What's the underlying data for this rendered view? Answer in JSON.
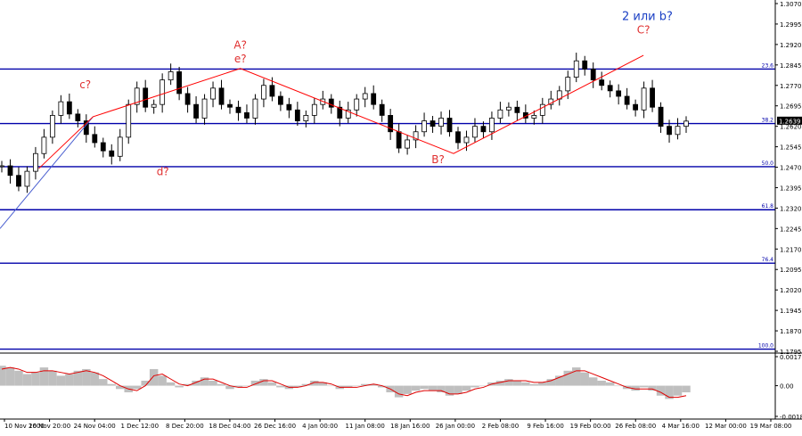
{
  "instrument_price": "1.2639",
  "colors": {
    "candles": "#000000",
    "fib_lines": "#0000aa",
    "wave_lines": "#ff0000",
    "wave_labels_red": "#e03030",
    "wave_label_blue": "#1a3fc4",
    "trendline": "#4a5fd0",
    "histogram": "#bfbfbf",
    "signal_line": "#e00000",
    "price_box": "#000000"
  },
  "chart_data": [
    {
      "type": "candlestick",
      "price_axis": {
        "ylim": [
          1.1795,
          1.307
        ],
        "ticks": [
          "1.3070",
          "1.2995",
          "1.2920",
          "1.2845",
          "1.2770",
          "1.2695",
          "1.2620",
          "1.2545",
          "1.2470",
          "1.2395",
          "1.2320",
          "1.2245",
          "1.2170",
          "1.2095",
          "1.2020",
          "1.1945",
          "1.1870",
          "1.1795"
        ]
      },
      "time_axis": {
        "ticks": [
          "10 Nov 2000",
          "16 Nov 20:00",
          "24 Nov 04:00",
          "1 Dec 12:00",
          "8 Dec 20:00",
          "18 Dec 04:00",
          "26 Dec 16:00",
          "4 Jan 00:00",
          "11 Jan 08:00",
          "18 Jan 16:00",
          "26 Jan 00:00",
          "2 Feb 08:00",
          "9 Feb 16:00",
          "19 Feb 00:00",
          "26 Feb 08:00",
          "4 Mar 16:00",
          "12 Mar 00:00",
          "19 Mar 08:00"
        ]
      },
      "fibonacci_levels": [
        {
          "label": "23.6",
          "price": 1.283
        },
        {
          "label": "38.2",
          "price": 1.263
        },
        {
          "label": "50.0",
          "price": 1.2472
        },
        {
          "label": "61.8",
          "price": 1.2314
        },
        {
          "label": "76.4",
          "price": 1.2118
        },
        {
          "label": "100.0",
          "price": 1.1803
        }
      ],
      "wave_labels": [
        {
          "text": "c?",
          "price": 1.276,
          "time_index": 0.11
        },
        {
          "text": "A?",
          "price": 1.2905,
          "time_index": 0.31
        },
        {
          "text": "e?",
          "price": 1.2855,
          "time_index": 0.31
        },
        {
          "text": "d?",
          "price": 1.244,
          "time_index": 0.21
        },
        {
          "text": "B?",
          "price": 1.2485,
          "time_index": 0.565
        },
        {
          "text": "C?",
          "price": 1.296,
          "time_index": 0.83
        },
        {
          "text": "2 или b?",
          "price": 1.301,
          "time_index": 0.835
        }
      ],
      "wave_path": [
        {
          "time_index": 0.05,
          "price": 1.2465
        },
        {
          "time_index": 0.12,
          "price": 1.2655
        },
        {
          "time_index": 0.31,
          "price": 1.2832
        },
        {
          "time_index": 0.585,
          "price": 1.252
        },
        {
          "time_index": 0.83,
          "price": 1.288
        }
      ],
      "trendline": [
        {
          "time_index": 0.0,
          "price": 1.2245
        },
        {
          "time_index": 0.12,
          "price": 1.2655
        }
      ],
      "close_series": [
        1.2475,
        1.244,
        1.24,
        1.2455,
        1.252,
        1.258,
        1.266,
        1.271,
        1.2665,
        1.264,
        1.259,
        1.256,
        1.253,
        1.251,
        1.258,
        1.27,
        1.276,
        1.269,
        1.27,
        1.279,
        1.282,
        1.274,
        1.27,
        1.265,
        1.272,
        1.276,
        1.27,
        1.269,
        1.267,
        1.265,
        1.272,
        1.277,
        1.273,
        1.27,
        1.268,
        1.264,
        1.266,
        1.27,
        1.272,
        1.269,
        1.265,
        1.268,
        1.272,
        1.274,
        1.27,
        1.266,
        1.26,
        1.254,
        1.257,
        1.26,
        1.264,
        1.262,
        1.265,
        1.26,
        1.256,
        1.258,
        1.262,
        1.26,
        1.265,
        1.268,
        1.269,
        1.267,
        1.265,
        1.266,
        1.27,
        1.272,
        1.275,
        1.28,
        1.286,
        1.283,
        1.279,
        1.277,
        1.275,
        1.273,
        1.27,
        1.268,
        1.276,
        1.269,
        1.262,
        1.259,
        1.262,
        1.2639
      ]
    },
    {
      "type": "oscillator",
      "ylim": [
        -0.00185,
        0.00175
      ],
      "ticks": [
        "0.00175",
        "0.00",
        "-0.00185"
      ],
      "histogram": [
        0.0012,
        0.0011,
        0.0009,
        0.0007,
        0.0008,
        0.0011,
        0.0009,
        0.0006,
        0.0007,
        0.0009,
        0.001,
        0.0008,
        0.0004,
        0.0001,
        -0.0002,
        -0.0004,
        -0.0002,
        0.0003,
        0.001,
        0.0006,
        0.0002,
        -0.0001,
        0.0001,
        0.0003,
        0.0005,
        0.0003,
        0.0001,
        -0.0002,
        -0.0001,
        0.0,
        0.0003,
        0.0004,
        0.0002,
        -0.0001,
        -0.0002,
        -0.0001,
        0.0001,
        0.0003,
        0.0002,
        0.0,
        -0.0002,
        -0.0001,
        0.0,
        0.0001,
        0.0001,
        -0.0001,
        -0.0004,
        -0.0007,
        -0.0005,
        -0.0003,
        -0.0002,
        -0.0003,
        -0.0004,
        -0.0006,
        -0.0005,
        -0.0003,
        -0.0001,
        0.0,
        0.0002,
        0.0003,
        0.0004,
        0.0003,
        0.0002,
        0.0001,
        0.0002,
        0.0004,
        0.0006,
        0.0009,
        0.0011,
        0.0008,
        0.0005,
        0.0003,
        0.0002,
        0.0,
        -0.0002,
        -0.0003,
        -0.0001,
        -0.0003,
        -0.0006,
        -0.0008,
        -0.0006,
        -0.0004
      ],
      "signal": [
        0.001,
        0.0011,
        0.001,
        0.0008,
        0.0008,
        0.0009,
        0.0009,
        0.0008,
        0.0007,
        0.0008,
        0.0009,
        0.0008,
        0.0006,
        0.0003,
        0.0,
        -0.0002,
        -0.0003,
        0.0,
        0.0006,
        0.0007,
        0.0004,
        0.0001,
        0.0,
        0.0002,
        0.0004,
        0.0004,
        0.0002,
        0.0,
        -0.0001,
        -0.0001,
        0.0001,
        0.0003,
        0.0003,
        0.0001,
        -0.0001,
        -0.0001,
        0.0,
        0.0002,
        0.0002,
        0.0001,
        -0.0001,
        -0.0001,
        -0.0001,
        0.0,
        0.0001,
        0.0,
        -0.0002,
        -0.0005,
        -0.0006,
        -0.0004,
        -0.0003,
        -0.0003,
        -0.0003,
        -0.0005,
        -0.0005,
        -0.0004,
        -0.0002,
        -0.0001,
        0.0001,
        0.0002,
        0.0003,
        0.0003,
        0.0003,
        0.0002,
        0.0002,
        0.0003,
        0.0005,
        0.0007,
        0.0009,
        0.0009,
        0.0007,
        0.0005,
        0.0003,
        0.0001,
        -0.0001,
        -0.0002,
        -0.0002,
        -0.0002,
        -0.0004,
        -0.0007,
        -0.0007,
        -0.0006
      ]
    }
  ]
}
